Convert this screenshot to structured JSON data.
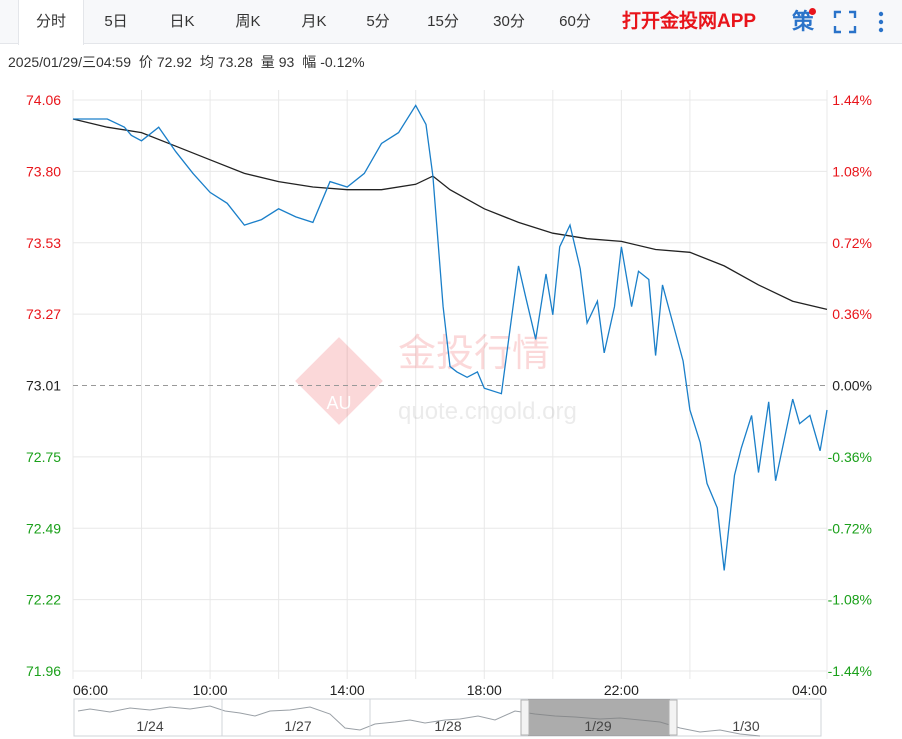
{
  "tabs": [
    {
      "label": "分时",
      "active": true
    },
    {
      "label": "5日"
    },
    {
      "label": "日K"
    },
    {
      "label": "周K"
    },
    {
      "label": "月K"
    },
    {
      "label": "5分"
    },
    {
      "label": "15分"
    },
    {
      "label": "30分"
    },
    {
      "label": "60分"
    }
  ],
  "app_link": "打开金投网APP",
  "toolbar": {
    "strategy_icon_text": "策",
    "icons": [
      "strategy-icon",
      "fullscreen-icon",
      "more-icon"
    ]
  },
  "info": {
    "datetime": "2025/01/29/三04:59",
    "price_label": "价",
    "price": "72.92",
    "avg_label": "均",
    "avg": "73.28",
    "vol_label": "量",
    "vol": "93",
    "chg_label": "幅",
    "chg": "-0.12%"
  },
  "watermark": {
    "brand": "金投行情",
    "logo": "AU",
    "url": "quote.cngold.org"
  },
  "colors": {
    "up": "#e8141a",
    "down": "#1aa01a",
    "price_line": "#1a7fc9",
    "avg_line": "#222222",
    "grid": "#e8e8e8"
  },
  "chart_data": {
    "type": "line",
    "prev_close": 73.01,
    "ylim": [
      71.96,
      74.06
    ],
    "left_ticks": [
      "74.06",
      "73.80",
      "73.53",
      "73.27",
      "73.01",
      "72.75",
      "72.49",
      "72.22",
      "71.96"
    ],
    "right_ticks": [
      "1.44%",
      "1.08%",
      "0.72%",
      "0.36%",
      "0.00%",
      "-0.36%",
      "-0.72%",
      "-1.08%",
      "-1.44%"
    ],
    "x_ticks": [
      "06:00",
      "10:00",
      "14:00",
      "18:00",
      "22:00",
      "04:00"
    ],
    "x_hours": [
      0,
      4,
      8,
      12,
      16,
      22
    ],
    "x_range": [
      0,
      22
    ],
    "price": {
      "x": [
        0,
        0.5,
        1.0,
        1.5,
        1.7,
        2.0,
        2.5,
        3.0,
        3.5,
        4.0,
        4.5,
        5.0,
        5.5,
        6.0,
        6.5,
        7.0,
        7.5,
        8.0,
        8.5,
        9.0,
        9.5,
        10.0,
        10.3,
        10.5,
        10.8,
        11.0,
        11.2,
        11.5,
        11.8,
        12.0,
        12.5,
        13.0,
        13.2,
        13.5,
        13.8,
        14.0,
        14.2,
        14.5,
        14.8,
        15.0,
        15.3,
        15.5,
        15.8,
        16.0,
        16.3,
        16.5,
        16.8,
        17.0,
        17.2,
        17.5,
        17.8,
        18.0,
        18.3,
        18.5,
        18.8,
        19.0,
        19.3,
        19.5,
        19.8,
        20.0,
        20.3,
        20.5,
        20.8,
        21.0,
        21.2,
        21.5,
        21.8,
        22.0
      ],
      "y": [
        73.99,
        73.99,
        73.99,
        73.96,
        73.93,
        73.91,
        73.96,
        73.87,
        73.79,
        73.72,
        73.68,
        73.6,
        73.62,
        73.66,
        73.63,
        73.61,
        73.76,
        73.74,
        73.79,
        73.9,
        73.94,
        74.04,
        73.97,
        73.78,
        73.3,
        73.08,
        73.06,
        73.04,
        73.06,
        73.0,
        72.98,
        73.45,
        73.34,
        73.18,
        73.42,
        73.27,
        73.52,
        73.6,
        73.44,
        73.24,
        73.32,
        73.13,
        73.3,
        73.52,
        73.3,
        73.43,
        73.4,
        73.12,
        73.38,
        73.24,
        73.1,
        72.92,
        72.8,
        72.65,
        72.56,
        72.33,
        72.68,
        72.78,
        72.9,
        72.69,
        72.95,
        72.66,
        72.84,
        72.96,
        72.87,
        72.9,
        72.77,
        72.92
      ]
    },
    "avg": {
      "x": [
        0,
        1.0,
        2.0,
        3.0,
        4.0,
        5.0,
        6.0,
        7.0,
        8.0,
        9.0,
        10.0,
        10.5,
        11.0,
        12.0,
        13.0,
        14.0,
        15.0,
        16.0,
        17.0,
        18.0,
        19.0,
        20.0,
        21.0,
        22.0
      ],
      "y": [
        73.99,
        73.96,
        73.94,
        73.89,
        73.84,
        73.79,
        73.76,
        73.74,
        73.73,
        73.73,
        73.75,
        73.78,
        73.73,
        73.66,
        73.61,
        73.57,
        73.55,
        73.54,
        73.51,
        73.5,
        73.45,
        73.38,
        73.32,
        73.29
      ]
    }
  },
  "navigator": {
    "labels": [
      "1/24",
      "1/27",
      "1/28",
      "1/29",
      "1/30"
    ]
  }
}
